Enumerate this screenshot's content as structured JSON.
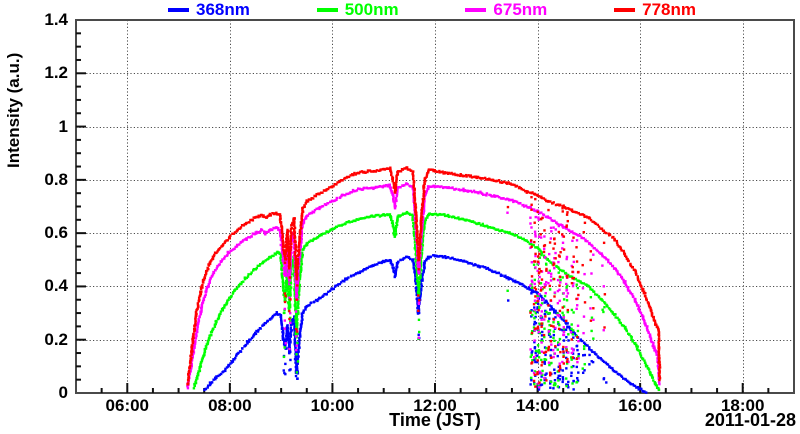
{
  "page": {
    "background": "#ffffff"
  },
  "chart_data": {
    "type": "scatter",
    "title": "",
    "xlabel": "Time (JST)",
    "ylabel": "Intensity (a.u.)",
    "date_label": "2011-01-28",
    "xlim_hours": [
      5,
      19
    ],
    "ylim": [
      0,
      1.4
    ],
    "x_minor_step_hours": 0.5,
    "y_minor_step": 0.05,
    "grid": {
      "show": true,
      "style": "dotted",
      "color": "#4d4d4d"
    },
    "frame_color": "#4a4a4a",
    "tick_color": "#111111",
    "text_color": "#000000",
    "x_ticks": [
      {
        "hour": 6,
        "label": "06:00"
      },
      {
        "hour": 8,
        "label": "08:00"
      },
      {
        "hour": 10,
        "label": "10:00"
      },
      {
        "hour": 12,
        "label": "12:00"
      },
      {
        "hour": 14,
        "label": "14:00"
      },
      {
        "hour": 16,
        "label": "16:00"
      },
      {
        "hour": 18,
        "label": "18:00"
      }
    ],
    "y_ticks": [
      {
        "value": 0,
        "label": "0"
      },
      {
        "value": 0.2,
        "label": "0.2"
      },
      {
        "value": 0.4,
        "label": "0.4"
      },
      {
        "value": 0.6,
        "label": "0.6"
      },
      {
        "value": 0.8,
        "label": "0.8"
      },
      {
        "value": 1,
        "label": "1"
      },
      {
        "value": 1.2,
        "label": "1.2"
      },
      {
        "value": 1.4,
        "label": "1.4"
      }
    ],
    "legend": {
      "position": "top",
      "entries": [
        {
          "label": "368nm",
          "color": "#0000ff"
        },
        {
          "label": "500nm",
          "color": "#00ff00"
        },
        {
          "label": "675nm",
          "color": "#ff00ff"
        },
        {
          "label": "778nm",
          "color": "#ff0000"
        }
      ]
    },
    "series": [
      {
        "name": "368nm",
        "color": "#0000ff",
        "points": [
          [
            7.5,
            0.01
          ],
          [
            7.62,
            0.035
          ],
          [
            7.75,
            0.06
          ],
          [
            7.9,
            0.085
          ],
          [
            8.05,
            0.12
          ],
          [
            8.2,
            0.155
          ],
          [
            8.35,
            0.19
          ],
          [
            8.5,
            0.225
          ],
          [
            8.65,
            0.255
          ],
          [
            8.8,
            0.28
          ],
          [
            8.92,
            0.3
          ],
          [
            8.99,
            0.292
          ],
          [
            9.04,
            0.21
          ],
          [
            9.08,
            0.17
          ],
          [
            9.12,
            0.25
          ],
          [
            9.16,
            0.15
          ],
          [
            9.2,
            0.26
          ],
          [
            9.25,
            0.285
          ],
          [
            9.3,
            0.075
          ],
          [
            9.35,
            0.19
          ],
          [
            9.42,
            0.3
          ],
          [
            9.5,
            0.325
          ],
          [
            9.75,
            0.355
          ],
          [
            10,
            0.39
          ],
          [
            10.25,
            0.425
          ],
          [
            10.5,
            0.452
          ],
          [
            10.75,
            0.475
          ],
          [
            11,
            0.492
          ],
          [
            11.12,
            0.5
          ],
          [
            11.18,
            0.47
          ],
          [
            11.22,
            0.44
          ],
          [
            11.27,
            0.49
          ],
          [
            11.45,
            0.512
          ],
          [
            11.57,
            0.5
          ],
          [
            11.63,
            0.42
          ],
          [
            11.68,
            0.3
          ],
          [
            11.74,
            0.42
          ],
          [
            11.8,
            0.49
          ],
          [
            11.88,
            0.512
          ],
          [
            12,
            0.515
          ],
          [
            12.25,
            0.508
          ],
          [
            12.55,
            0.495
          ],
          [
            12.85,
            0.478
          ],
          [
            13.15,
            0.455
          ],
          [
            13.45,
            0.43
          ],
          [
            13.65,
            0.41
          ],
          [
            13.85,
            0.39
          ],
          [
            14,
            0.375
          ],
          [
            14.15,
            0.345
          ],
          [
            14.3,
            0.315
          ],
          [
            14.5,
            0.275
          ],
          [
            14.7,
            0.225
          ],
          [
            15,
            0.17
          ],
          [
            15.2,
            0.135
          ],
          [
            15.4,
            0.1
          ],
          [
            15.6,
            0.068
          ],
          [
            15.8,
            0.038
          ],
          [
            16,
            0.015
          ],
          [
            16.11,
            0.003
          ]
        ]
      },
      {
        "name": "500nm",
        "color": "#00ff00",
        "points": [
          [
            7.3,
            0.02
          ],
          [
            7.38,
            0.07
          ],
          [
            7.47,
            0.13
          ],
          [
            7.56,
            0.185
          ],
          [
            7.66,
            0.235
          ],
          [
            7.78,
            0.285
          ],
          [
            7.93,
            0.335
          ],
          [
            8.1,
            0.385
          ],
          [
            8.3,
            0.43
          ],
          [
            8.5,
            0.468
          ],
          [
            8.65,
            0.49
          ],
          [
            8.8,
            0.512
          ],
          [
            8.93,
            0.53
          ],
          [
            8.99,
            0.522
          ],
          [
            9.04,
            0.4
          ],
          [
            9.08,
            0.35
          ],
          [
            9.12,
            0.46
          ],
          [
            9.16,
            0.31
          ],
          [
            9.2,
            0.47
          ],
          [
            9.25,
            0.51
          ],
          [
            9.3,
            0.21
          ],
          [
            9.35,
            0.4
          ],
          [
            9.42,
            0.535
          ],
          [
            9.5,
            0.56
          ],
          [
            9.75,
            0.59
          ],
          [
            10,
            0.615
          ],
          [
            10.25,
            0.638
          ],
          [
            10.5,
            0.652
          ],
          [
            10.75,
            0.662
          ],
          [
            11,
            0.668
          ],
          [
            11.12,
            0.67
          ],
          [
            11.18,
            0.63
          ],
          [
            11.22,
            0.585
          ],
          [
            11.27,
            0.66
          ],
          [
            11.45,
            0.678
          ],
          [
            11.57,
            0.665
          ],
          [
            11.63,
            0.52
          ],
          [
            11.68,
            0.37
          ],
          [
            11.74,
            0.52
          ],
          [
            11.8,
            0.645
          ],
          [
            11.88,
            0.672
          ],
          [
            12,
            0.672
          ],
          [
            12.25,
            0.665
          ],
          [
            12.55,
            0.652
          ],
          [
            12.85,
            0.636
          ],
          [
            13.15,
            0.618
          ],
          [
            13.45,
            0.6
          ],
          [
            13.65,
            0.585
          ],
          [
            13.85,
            0.562
          ],
          [
            14,
            0.545
          ],
          [
            14.2,
            0.5
          ],
          [
            14.5,
            0.455
          ],
          [
            14.8,
            0.42
          ],
          [
            15,
            0.4
          ],
          [
            15.25,
            0.35
          ],
          [
            15.5,
            0.295
          ],
          [
            15.7,
            0.245
          ],
          [
            15.9,
            0.185
          ],
          [
            16.05,
            0.13
          ],
          [
            16.2,
            0.075
          ],
          [
            16.3,
            0.035
          ],
          [
            16.38,
            0.01
          ]
        ]
      },
      {
        "name": "675nm",
        "color": "#ff00ff",
        "points": [
          [
            7.17,
            0.02
          ],
          [
            7.23,
            0.08
          ],
          [
            7.3,
            0.17
          ],
          [
            7.38,
            0.26
          ],
          [
            7.46,
            0.33
          ],
          [
            7.56,
            0.395
          ],
          [
            7.68,
            0.45
          ],
          [
            7.82,
            0.49
          ],
          [
            7.97,
            0.525
          ],
          [
            8.13,
            0.553
          ],
          [
            8.32,
            0.578
          ],
          [
            8.5,
            0.6
          ],
          [
            8.62,
            0.61
          ],
          [
            8.7,
            0.598
          ],
          [
            8.78,
            0.612
          ],
          [
            8.9,
            0.62
          ],
          [
            8.98,
            0.612
          ],
          [
            9.04,
            0.5
          ],
          [
            9.08,
            0.44
          ],
          [
            9.12,
            0.55
          ],
          [
            9.16,
            0.41
          ],
          [
            9.2,
            0.57
          ],
          [
            9.25,
            0.6
          ],
          [
            9.3,
            0.36
          ],
          [
            9.35,
            0.5
          ],
          [
            9.42,
            0.635
          ],
          [
            9.5,
            0.665
          ],
          [
            9.75,
            0.695
          ],
          [
            10,
            0.72
          ],
          [
            10.2,
            0.742
          ],
          [
            10.4,
            0.758
          ],
          [
            10.6,
            0.768
          ],
          [
            10.8,
            0.77
          ],
          [
            11,
            0.778
          ],
          [
            11.12,
            0.78
          ],
          [
            11.18,
            0.74
          ],
          [
            11.22,
            0.695
          ],
          [
            11.27,
            0.768
          ],
          [
            11.45,
            0.785
          ],
          [
            11.57,
            0.77
          ],
          [
            11.63,
            0.63
          ],
          [
            11.68,
            0.45
          ],
          [
            11.74,
            0.6
          ],
          [
            11.8,
            0.74
          ],
          [
            11.88,
            0.775
          ],
          [
            12,
            0.775
          ],
          [
            12.25,
            0.77
          ],
          [
            12.55,
            0.762
          ],
          [
            12.85,
            0.752
          ],
          [
            13.15,
            0.74
          ],
          [
            13.45,
            0.725
          ],
          [
            13.65,
            0.712
          ],
          [
            13.85,
            0.695
          ],
          [
            14,
            0.682
          ],
          [
            14.2,
            0.66
          ],
          [
            14.5,
            0.625
          ],
          [
            14.8,
            0.59
          ],
          [
            15,
            0.563
          ],
          [
            15.25,
            0.52
          ],
          [
            15.5,
            0.47
          ],
          [
            15.7,
            0.415
          ],
          [
            15.9,
            0.35
          ],
          [
            16.05,
            0.285
          ],
          [
            16.2,
            0.21
          ],
          [
            16.3,
            0.155
          ],
          [
            16.35,
            0.14
          ],
          [
            16.37,
            0.035
          ]
        ]
      },
      {
        "name": "778nm",
        "color": "#ff0000",
        "points": [
          [
            7.17,
            0.03
          ],
          [
            7.22,
            0.1
          ],
          [
            7.28,
            0.2
          ],
          [
            7.34,
            0.29
          ],
          [
            7.42,
            0.37
          ],
          [
            7.5,
            0.43
          ],
          [
            7.6,
            0.485
          ],
          [
            7.72,
            0.525
          ],
          [
            7.85,
            0.555
          ],
          [
            8,
            0.585
          ],
          [
            8.15,
            0.612
          ],
          [
            8.32,
            0.636
          ],
          [
            8.5,
            0.658
          ],
          [
            8.62,
            0.668
          ],
          [
            8.7,
            0.656
          ],
          [
            8.78,
            0.668
          ],
          [
            8.9,
            0.675
          ],
          [
            8.98,
            0.668
          ],
          [
            9.04,
            0.56
          ],
          [
            9.08,
            0.5
          ],
          [
            9.12,
            0.61
          ],
          [
            9.16,
            0.47
          ],
          [
            9.2,
            0.63
          ],
          [
            9.25,
            0.655
          ],
          [
            9.3,
            0.43
          ],
          [
            9.35,
            0.56
          ],
          [
            9.42,
            0.69
          ],
          [
            9.5,
            0.72
          ],
          [
            9.75,
            0.75
          ],
          [
            10,
            0.775
          ],
          [
            10.2,
            0.8
          ],
          [
            10.4,
            0.82
          ],
          [
            10.6,
            0.83
          ],
          [
            10.8,
            0.832
          ],
          [
            11,
            0.84
          ],
          [
            11.12,
            0.842
          ],
          [
            11.18,
            0.8
          ],
          [
            11.22,
            0.755
          ],
          [
            11.27,
            0.83
          ],
          [
            11.45,
            0.845
          ],
          [
            11.57,
            0.83
          ],
          [
            11.63,
            0.68
          ],
          [
            11.68,
            0.5
          ],
          [
            11.74,
            0.66
          ],
          [
            11.8,
            0.8
          ],
          [
            11.88,
            0.835
          ],
          [
            12,
            0.833
          ],
          [
            12.2,
            0.825
          ],
          [
            12.5,
            0.818
          ],
          [
            12.8,
            0.81
          ],
          [
            13.1,
            0.8
          ],
          [
            13.4,
            0.79
          ],
          [
            13.6,
            0.775
          ],
          [
            13.8,
            0.755
          ],
          [
            13.95,
            0.745
          ],
          [
            14.2,
            0.72
          ],
          [
            14.5,
            0.7
          ],
          [
            14.8,
            0.675
          ],
          [
            15,
            0.657
          ],
          [
            15.25,
            0.615
          ],
          [
            15.5,
            0.578
          ],
          [
            15.7,
            0.52
          ],
          [
            15.9,
            0.455
          ],
          [
            16.05,
            0.39
          ],
          [
            16.2,
            0.315
          ],
          [
            16.3,
            0.26
          ],
          [
            16.36,
            0.24
          ],
          [
            16.38,
            0.05
          ]
        ]
      }
    ],
    "noise_bursts": [
      {
        "t": 9.07,
        "w": 0.02,
        "n": 5,
        "f": 0.35
      },
      {
        "t": 9.18,
        "w": 0.02,
        "n": 4,
        "f": 0.35
      },
      {
        "t": 9.31,
        "w": 0.02,
        "n": 6,
        "f": 0.3
      },
      {
        "t": 11.68,
        "w": 0.015,
        "n": 4,
        "f": 0.45
      },
      {
        "t": 13.42,
        "w": 0.01,
        "n": 1,
        "f": 0.5
      },
      {
        "t": 13.88,
        "w": 0.02,
        "n": 10,
        "f": 0.05
      },
      {
        "t": 13.95,
        "w": 0.02,
        "n": 14,
        "f": 0.03
      },
      {
        "t": 14.02,
        "w": 0.025,
        "n": 16,
        "f": 0.03
      },
      {
        "t": 14.08,
        "w": 0.02,
        "n": 12,
        "f": 0.05
      },
      {
        "t": 14.15,
        "w": 0.025,
        "n": 12,
        "f": 0.04
      },
      {
        "t": 14.24,
        "w": 0.03,
        "n": 14,
        "f": 0.04
      },
      {
        "t": 14.33,
        "w": 0.025,
        "n": 12,
        "f": 0.05
      },
      {
        "t": 14.42,
        "w": 0.03,
        "n": 12,
        "f": 0.05
      },
      {
        "t": 14.5,
        "w": 0.02,
        "n": 10,
        "f": 0.06
      },
      {
        "t": 14.58,
        "w": 0.025,
        "n": 12,
        "f": 0.05
      },
      {
        "t": 14.68,
        "w": 0.03,
        "n": 10,
        "f": 0.06
      },
      {
        "t": 14.78,
        "w": 0.025,
        "n": 8,
        "f": 0.08
      },
      {
        "t": 14.9,
        "w": 0.03,
        "n": 4,
        "f": 0.2
      },
      {
        "t": 15.05,
        "w": 0.04,
        "n": 4,
        "f": 0.3
      },
      {
        "t": 15.3,
        "w": 0.04,
        "n": 3,
        "f": 0.35
      }
    ]
  }
}
